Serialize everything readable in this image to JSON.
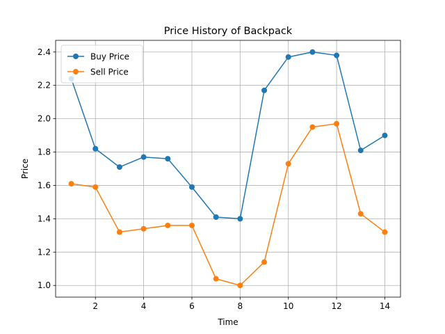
{
  "chart_data": {
    "type": "line",
    "title": "Price History of Backpack",
    "xlabel": "Time",
    "ylabel": "Price",
    "x": [
      1,
      2,
      3,
      4,
      5,
      6,
      7,
      8,
      9,
      10,
      11,
      12,
      13,
      14
    ],
    "xticks": [
      2,
      4,
      6,
      8,
      10,
      12,
      14
    ],
    "yticks": [
      1.0,
      1.2,
      1.4,
      1.6,
      1.8,
      2.0,
      2.2,
      2.4
    ],
    "xlim": [
      0.35,
      14.65
    ],
    "ylim": [
      0.93,
      2.47
    ],
    "grid": true,
    "legend_position": "upper-left",
    "series": [
      {
        "name": "Buy Price",
        "color": "#1f77b4",
        "values": [
          2.24,
          1.82,
          1.71,
          1.77,
          1.76,
          1.59,
          1.41,
          1.4,
          2.17,
          2.37,
          2.4,
          2.38,
          1.81,
          1.9
        ]
      },
      {
        "name": "Sell Price",
        "color": "#ff7f0e",
        "values": [
          1.61,
          1.59,
          1.32,
          1.34,
          1.36,
          1.36,
          1.04,
          1.0,
          1.14,
          1.73,
          1.95,
          1.97,
          1.43,
          1.32
        ]
      }
    ]
  }
}
